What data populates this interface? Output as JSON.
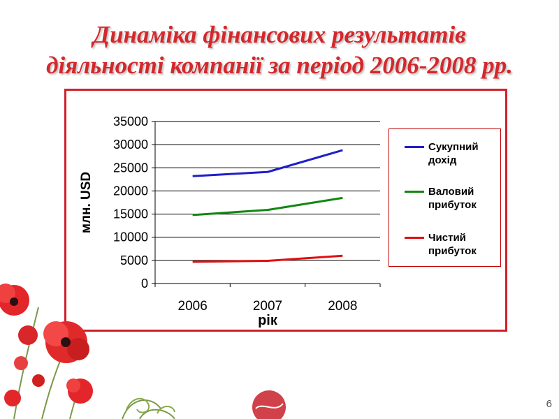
{
  "slide": {
    "title_line1": "Динаміка фінансових результатів",
    "title_line2": "діяльності компанії за період 2006-2008 рр.",
    "page_number": "6",
    "accent_color": "#d3282c"
  },
  "chart_data": {
    "type": "line",
    "categories": [
      "2006",
      "2007",
      "2008"
    ],
    "series": [
      {
        "name": "Сукупний дохід",
        "values": [
          23200,
          24100,
          28800
        ],
        "color": "#1f1fc8"
      },
      {
        "name": "Валовий прибуток",
        "values": [
          14800,
          15900,
          18500
        ],
        "color": "#118811"
      },
      {
        "name": "Чистий прибуток",
        "values": [
          4700,
          4900,
          6000
        ],
        "color": "#e01010"
      }
    ],
    "xlabel": "рік",
    "ylabel": "млн. USD",
    "ylim": [
      0,
      35000
    ],
    "yticks": [
      0,
      5000,
      10000,
      15000,
      20000,
      25000,
      30000,
      35000
    ],
    "grid": true,
    "legend_position": "right"
  },
  "legend_lines": [
    [
      "Сукупний",
      "дохід"
    ],
    [
      "Валовий",
      "прибуток"
    ],
    [
      "Чистий",
      "прибуток"
    ]
  ]
}
